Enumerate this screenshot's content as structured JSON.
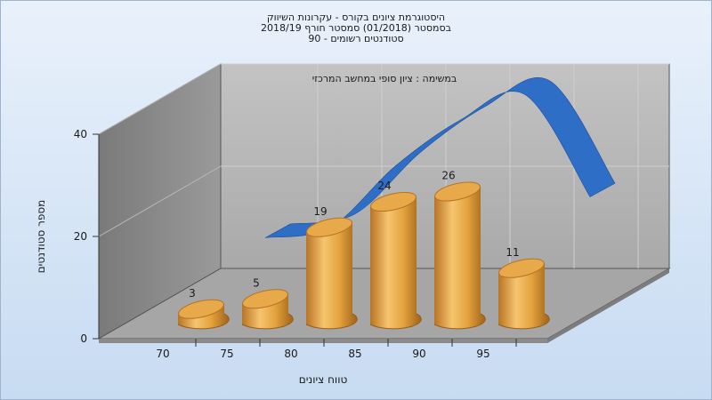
{
  "chart_data": {
    "type": "bar",
    "title_lines": [
      "היסטוגרמת ציונים בקורס - עקרונות השיווק",
      "בסמסטר  (01/2018)  סמסטר חורף 2018/19",
      "סטודנטים רשומים - 90"
    ],
    "subtitle": "במשימה : ציון סופי במחשב המרכזי",
    "xlabel": "טווח ציונים",
    "ylabel": "מספר סטודנטים",
    "x_ticks": [
      "70",
      "75",
      "80",
      "85",
      "90",
      "95"
    ],
    "y_ticks": [
      "0",
      "20",
      "40"
    ],
    "ylim": [
      0,
      40
    ],
    "bars": [
      {
        "label": "3",
        "value": 3
      },
      {
        "label": "5",
        "value": 5
      },
      {
        "label": "19",
        "value": 19
      },
      {
        "label": "24",
        "value": 24
      },
      {
        "label": "26",
        "value": 26
      },
      {
        "label": "11",
        "value": 11
      }
    ],
    "curve_values": [
      6,
      8,
      20,
      29,
      34,
      14
    ],
    "grid": true,
    "style": "3d-cylinder",
    "colors": {
      "bar": "#e3a13e",
      "curve": "#2f6ec6",
      "wall": "#b3b3b3",
      "side_wall": "#8c8c8c",
      "background": "#d6e6f7"
    }
  }
}
